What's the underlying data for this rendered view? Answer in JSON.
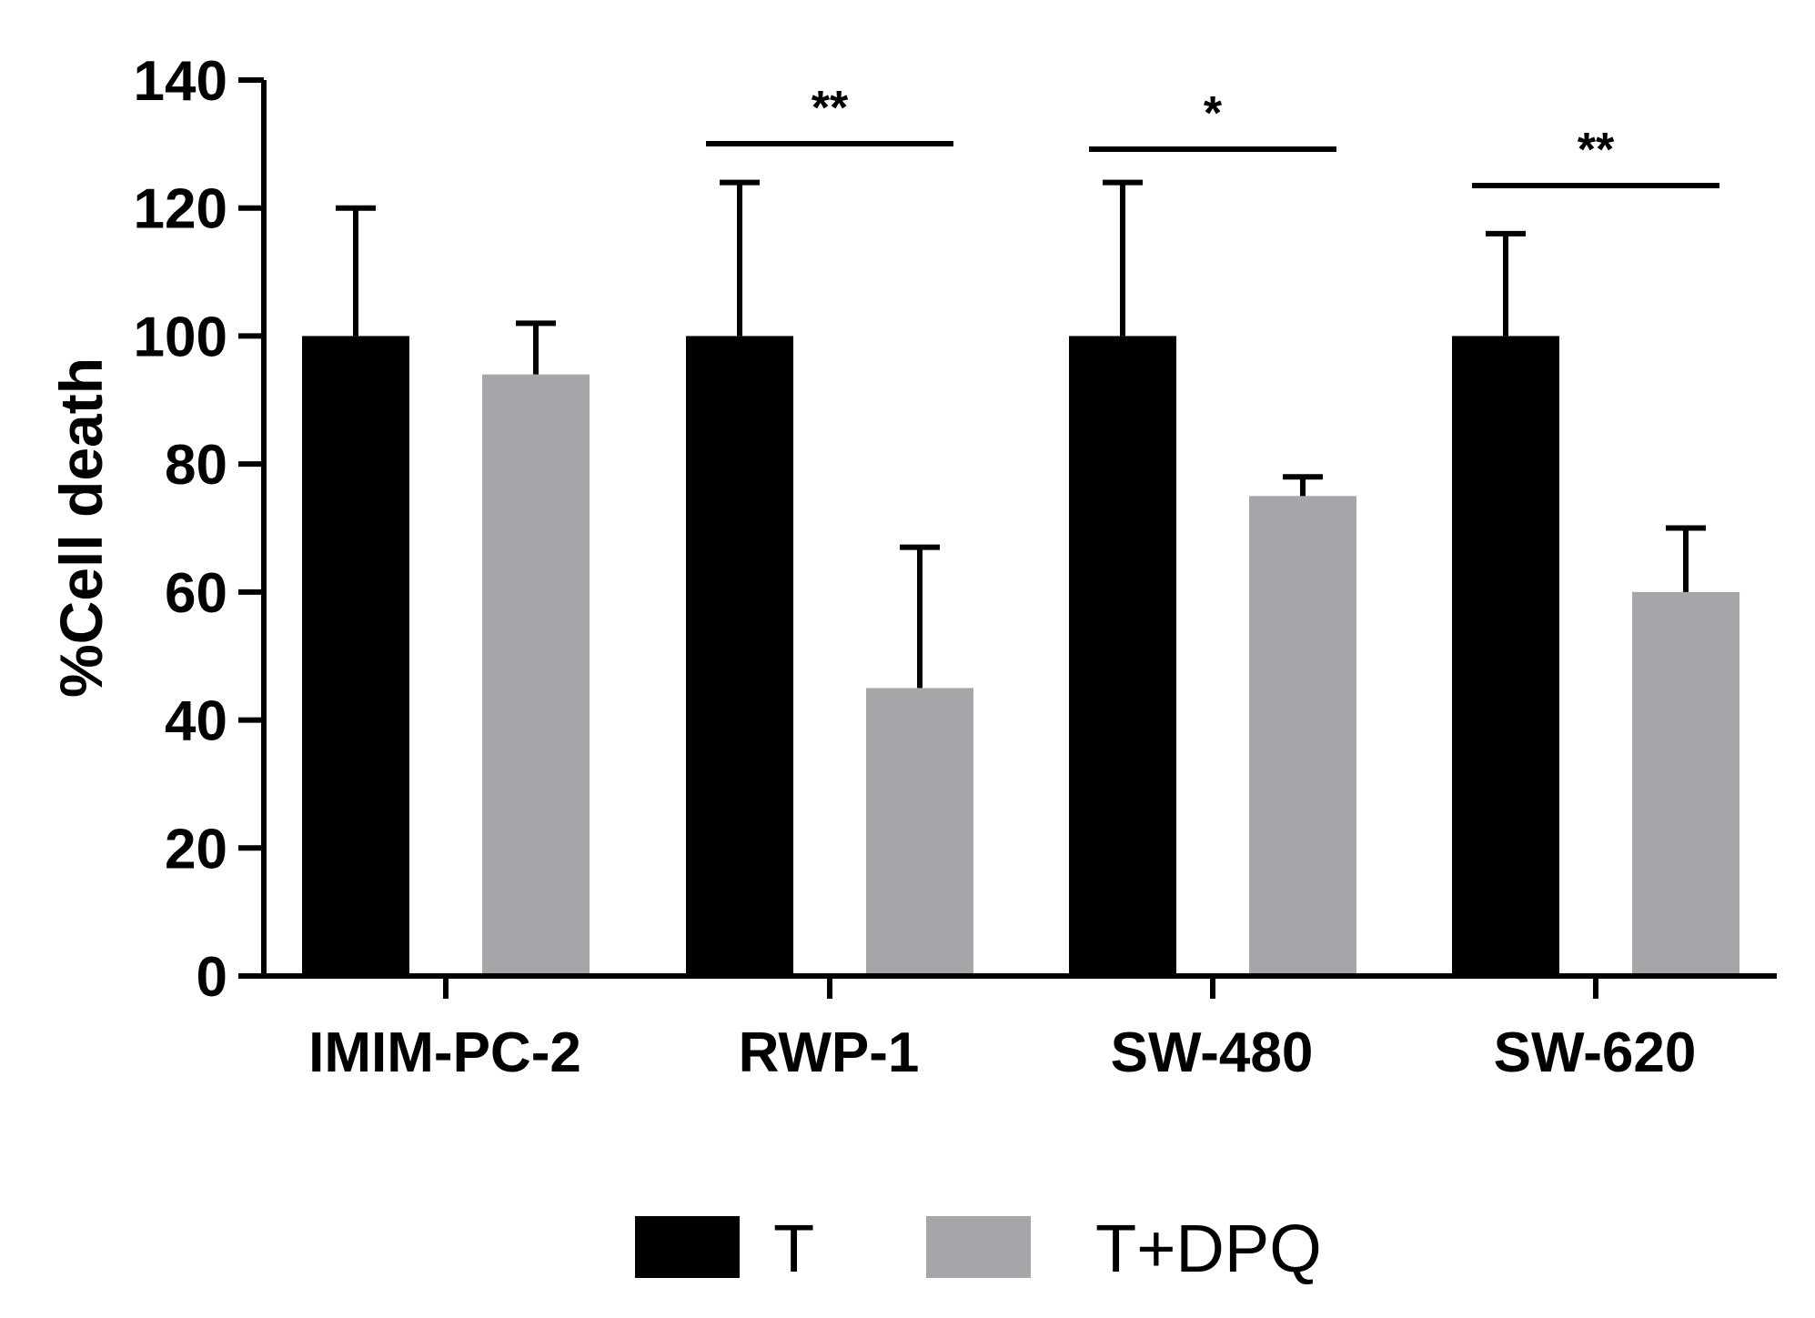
{
  "chart_data": {
    "type": "bar",
    "title": "",
    "xlabel": "",
    "ylabel": "%Cell death",
    "ylim": [
      0,
      140
    ],
    "yticks": [
      0,
      20,
      40,
      60,
      80,
      100,
      120,
      140
    ],
    "categories": [
      "IMIM-PC-2",
      "RWP-1",
      "SW-480",
      "SW-620"
    ],
    "series": [
      {
        "name": "T",
        "color": "#000000",
        "values": [
          100,
          100,
          100,
          100
        ],
        "errors": [
          20,
          24,
          24,
          16
        ]
      },
      {
        "name": "T+DPQ",
        "color": "#a6a5aa",
        "values": [
          94,
          45,
          75,
          60
        ],
        "errors": [
          8,
          22,
          3,
          10
        ]
      }
    ],
    "significance": [
      {
        "category": "RWP-1",
        "label": "**"
      },
      {
        "category": "SW-480",
        "label": "*"
      },
      {
        "category": "SW-620",
        "label": "**"
      }
    ],
    "legend": {
      "placement": "bottom-center",
      "entries": [
        "T",
        "T+DPQ"
      ]
    }
  }
}
